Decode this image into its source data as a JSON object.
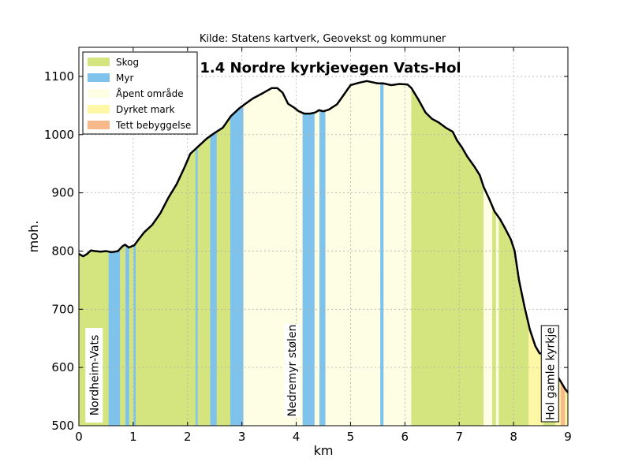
{
  "source": "Kilde: Statens kartverk, Geovekst og kommuner",
  "chart_data": {
    "type": "area",
    "title": "1.4 Nordre kyrkjevegen Vats-Hol",
    "xlabel": "km",
    "ylabel": "moh.",
    "xlim": [
      0,
      9
    ],
    "ylim": [
      500,
      1150
    ],
    "xticks": [
      0,
      1,
      2,
      3,
      4,
      5,
      6,
      7,
      8,
      9
    ],
    "yticks": [
      500,
      600,
      700,
      800,
      900,
      1000,
      1100
    ],
    "grid": true,
    "legend_position": "top-left",
    "legend": [
      {
        "key": "skog",
        "label": "Skog",
        "color": "#d4e57f"
      },
      {
        "key": "myr",
        "label": "Myr",
        "color": "#7fc3ec"
      },
      {
        "key": "apent",
        "label": "Åpent område",
        "color": "#fefee4"
      },
      {
        "key": "dyrket",
        "label": "Dyrket mark",
        "color": "#fdf7a6"
      },
      {
        "key": "tett",
        "label": "Tett bebyggelse",
        "color": "#f7b98a"
      }
    ],
    "elevation_profile": [
      [
        0,
        795
      ],
      [
        0.08,
        791
      ],
      [
        0.15,
        795
      ],
      [
        0.22,
        801
      ],
      [
        0.3,
        800
      ],
      [
        0.4,
        799
      ],
      [
        0.5,
        800
      ],
      [
        0.6,
        798
      ],
      [
        0.72,
        800
      ],
      [
        0.8,
        808
      ],
      [
        0.85,
        811
      ],
      [
        0.92,
        806
      ],
      [
        1.02,
        810
      ],
      [
        1.1,
        820
      ],
      [
        1.2,
        832
      ],
      [
        1.35,
        845
      ],
      [
        1.5,
        865
      ],
      [
        1.65,
        892
      ],
      [
        1.8,
        915
      ],
      [
        1.95,
        945
      ],
      [
        2.05,
        967
      ],
      [
        2.2,
        980
      ],
      [
        2.35,
        993
      ],
      [
        2.5,
        1003
      ],
      [
        2.65,
        1012
      ],
      [
        2.8,
        1032
      ],
      [
        2.95,
        1045
      ],
      [
        3.05,
        1052
      ],
      [
        3.2,
        1062
      ],
      [
        3.4,
        1072
      ],
      [
        3.55,
        1080
      ],
      [
        3.65,
        1080
      ],
      [
        3.75,
        1072
      ],
      [
        3.85,
        1053
      ],
      [
        3.95,
        1047
      ],
      [
        4.05,
        1040
      ],
      [
        4.15,
        1036
      ],
      [
        4.25,
        1036
      ],
      [
        4.35,
        1038
      ],
      [
        4.42,
        1042
      ],
      [
        4.5,
        1040
      ],
      [
        4.6,
        1043
      ],
      [
        4.75,
        1052
      ],
      [
        4.85,
        1065
      ],
      [
        5.0,
        1085
      ],
      [
        5.15,
        1089
      ],
      [
        5.3,
        1092
      ],
      [
        5.4,
        1090
      ],
      [
        5.5,
        1088
      ],
      [
        5.6,
        1088
      ],
      [
        5.75,
        1085
      ],
      [
        5.9,
        1087
      ],
      [
        6.05,
        1086
      ],
      [
        6.12,
        1080
      ],
      [
        6.25,
        1060
      ],
      [
        6.38,
        1038
      ],
      [
        6.5,
        1027
      ],
      [
        6.62,
        1021
      ],
      [
        6.75,
        1012
      ],
      [
        6.88,
        1005
      ],
      [
        6.96,
        990
      ],
      [
        7.05,
        978
      ],
      [
        7.15,
        962
      ],
      [
        7.28,
        945
      ],
      [
        7.38,
        930
      ],
      [
        7.45,
        910
      ],
      [
        7.55,
        890
      ],
      [
        7.65,
        868
      ],
      [
        7.75,
        855
      ],
      [
        7.85,
        838
      ],
      [
        7.95,
        820
      ],
      [
        8.02,
        800
      ],
      [
        8.1,
        750
      ],
      [
        8.2,
        705
      ],
      [
        8.3,
        665
      ],
      [
        8.4,
        637
      ],
      [
        8.48,
        624
      ],
      [
        8.58,
        625
      ],
      [
        8.65,
        617
      ],
      [
        8.72,
        600
      ],
      [
        8.8,
        586
      ],
      [
        8.88,
        574
      ],
      [
        8.95,
        563
      ],
      [
        9.0,
        557
      ]
    ],
    "land_cover": [
      {
        "from": 0.0,
        "to": 0.55,
        "class": "skog"
      },
      {
        "from": 0.55,
        "to": 0.76,
        "class": "myr"
      },
      {
        "from": 0.76,
        "to": 0.86,
        "class": "skog"
      },
      {
        "from": 0.86,
        "to": 0.93,
        "class": "myr"
      },
      {
        "from": 0.93,
        "to": 1.01,
        "class": "skog"
      },
      {
        "from": 1.01,
        "to": 1.05,
        "class": "myr"
      },
      {
        "from": 1.05,
        "to": 2.15,
        "class": "skog"
      },
      {
        "from": 2.15,
        "to": 2.19,
        "class": "myr"
      },
      {
        "from": 2.19,
        "to": 2.42,
        "class": "skog"
      },
      {
        "from": 2.42,
        "to": 2.54,
        "class": "myr"
      },
      {
        "from": 2.54,
        "to": 2.79,
        "class": "skog"
      },
      {
        "from": 2.79,
        "to": 3.03,
        "class": "myr"
      },
      {
        "from": 3.03,
        "to": 4.12,
        "class": "apent"
      },
      {
        "from": 4.12,
        "to": 4.34,
        "class": "myr"
      },
      {
        "from": 4.34,
        "to": 4.43,
        "class": "apent"
      },
      {
        "from": 4.43,
        "to": 4.54,
        "class": "myr"
      },
      {
        "from": 4.54,
        "to": 5.55,
        "class": "apent"
      },
      {
        "from": 5.55,
        "to": 5.61,
        "class": "myr"
      },
      {
        "from": 5.61,
        "to": 6.12,
        "class": "apent"
      },
      {
        "from": 6.12,
        "to": 7.45,
        "class": "skog"
      },
      {
        "from": 7.45,
        "to": 7.61,
        "class": "apent"
      },
      {
        "from": 7.61,
        "to": 7.68,
        "class": "skog"
      },
      {
        "from": 7.68,
        "to": 7.73,
        "class": "apent"
      },
      {
        "from": 7.73,
        "to": 8.28,
        "class": "skog"
      },
      {
        "from": 8.28,
        "to": 8.55,
        "class": "dyrket"
      },
      {
        "from": 8.55,
        "to": 8.77,
        "class": "skog"
      },
      {
        "from": 8.77,
        "to": 8.87,
        "class": "dyrket"
      },
      {
        "from": 8.87,
        "to": 8.95,
        "class": "tett"
      },
      {
        "from": 8.95,
        "to": 9.0,
        "class": "dyrket"
      }
    ],
    "annotations": [
      {
        "text": "Nordheim-Vats",
        "x": 0.28
      },
      {
        "text": "Nedremyr stølen",
        "x": 3.92
      },
      {
        "text": "Hol gamle kyrkje",
        "x": 8.67
      }
    ]
  }
}
